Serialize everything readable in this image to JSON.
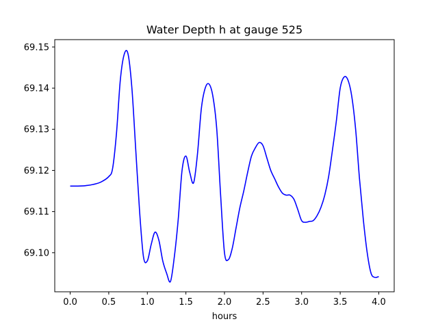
{
  "chart_data": {
    "type": "line",
    "title": "Water Depth h at gauge 525",
    "xlabel": "hours",
    "ylabel": "",
    "xlim": [
      -0.2,
      4.2
    ],
    "ylim": [
      69.0905,
      69.1518
    ],
    "xticks": [
      0.0,
      0.5,
      1.0,
      1.5,
      2.0,
      2.5,
      3.0,
      3.5,
      4.0
    ],
    "xtick_labels": [
      "0.0",
      "0.5",
      "1.0",
      "1.5",
      "2.0",
      "2.5",
      "3.0",
      "3.5",
      "4.0"
    ],
    "yticks": [
      69.1,
      69.11,
      69.12,
      69.13,
      69.14,
      69.15
    ],
    "ytick_labels": [
      "69.10",
      "69.11",
      "69.12",
      "69.13",
      "69.14",
      "69.15"
    ],
    "grid": false,
    "series": [
      {
        "color": "#0000ff",
        "x": [
          0.0,
          0.1,
          0.2,
          0.3,
          0.4,
          0.5,
          0.55,
          0.6,
          0.65,
          0.7,
          0.75,
          0.8,
          0.85,
          0.9,
          0.95,
          1.0,
          1.05,
          1.1,
          1.15,
          1.2,
          1.25,
          1.3,
          1.35,
          1.4,
          1.45,
          1.5,
          1.55,
          1.6,
          1.65,
          1.7,
          1.75,
          1.8,
          1.85,
          1.9,
          1.95,
          2.0,
          2.05,
          2.1,
          2.15,
          2.2,
          2.25,
          2.3,
          2.35,
          2.4,
          2.45,
          2.5,
          2.55,
          2.6,
          2.65,
          2.7,
          2.75,
          2.8,
          2.85,
          2.9,
          2.95,
          3.0,
          3.05,
          3.1,
          3.15,
          3.2,
          3.25,
          3.3,
          3.35,
          3.4,
          3.45,
          3.5,
          3.55,
          3.6,
          3.65,
          3.7,
          3.75,
          3.8,
          3.85,
          3.9,
          3.95,
          4.0
        ],
        "y": [
          69.1162,
          69.1162,
          69.1163,
          69.1166,
          69.1172,
          69.1185,
          69.1205,
          69.129,
          69.142,
          69.1482,
          69.1483,
          69.14,
          69.125,
          69.11,
          69.099,
          69.098,
          69.102,
          69.105,
          69.103,
          69.098,
          69.095,
          69.093,
          69.099,
          69.108,
          69.12,
          69.1235,
          69.1195,
          69.117,
          69.124,
          69.135,
          69.14,
          69.141,
          69.138,
          69.13,
          69.114,
          69.1,
          69.0983,
          69.101,
          69.106,
          69.111,
          69.115,
          69.1195,
          69.1235,
          69.1255,
          69.1268,
          69.126,
          69.123,
          69.12,
          69.118,
          69.116,
          69.1145,
          69.114,
          69.114,
          69.113,
          69.1105,
          69.1078,
          69.1074,
          69.1076,
          69.1078,
          69.109,
          69.111,
          69.114,
          69.1185,
          69.125,
          69.132,
          69.14,
          69.1427,
          69.142,
          69.138,
          69.13,
          69.118,
          69.108,
          69.1,
          69.095,
          69.094,
          69.0942
        ]
      }
    ]
  }
}
